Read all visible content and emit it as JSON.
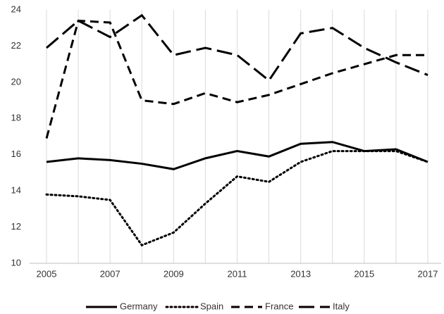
{
  "chart_data": {
    "type": "line",
    "x": [
      2005,
      2006,
      2007,
      2008,
      2009,
      2010,
      2011,
      2012,
      2013,
      2014,
      2015,
      2016,
      2017
    ],
    "xlim": [
      2005,
      2017
    ],
    "xticks": [
      2005,
      2007,
      2009,
      2011,
      2013,
      2015,
      2017
    ],
    "ylim": [
      10,
      24
    ],
    "yticks": [
      10,
      12,
      14,
      16,
      18,
      20,
      22,
      24
    ],
    "grid": true,
    "legend": "bottom",
    "series": [
      {
        "name": "Germany",
        "color": "#000000",
        "dash": "solid",
        "values": [
          15.6,
          15.8,
          15.7,
          15.5,
          15.2,
          15.8,
          16.2,
          15.9,
          16.6,
          16.7,
          16.2,
          16.3,
          15.6
        ]
      },
      {
        "name": "Spain",
        "color": "#000000",
        "dash": "dotted",
        "values": [
          13.8,
          13.7,
          13.5,
          11.0,
          11.7,
          13.3,
          14.8,
          14.5,
          15.6,
          16.2,
          16.2,
          16.2,
          15.6
        ]
      },
      {
        "name": "France",
        "color": "#000000",
        "dash": "dashed",
        "values": [
          16.9,
          23.4,
          23.3,
          19.0,
          18.8,
          19.4,
          18.9,
          19.3,
          19.9,
          20.5,
          21.0,
          21.5,
          21.5
        ]
      },
      {
        "name": "Italy",
        "color": "#000000",
        "dash": "longdash",
        "values": [
          21.9,
          23.4,
          22.5,
          23.7,
          21.5,
          21.9,
          21.5,
          20.1,
          22.7,
          23.0,
          21.9,
          21.1,
          20.4
        ]
      }
    ]
  }
}
